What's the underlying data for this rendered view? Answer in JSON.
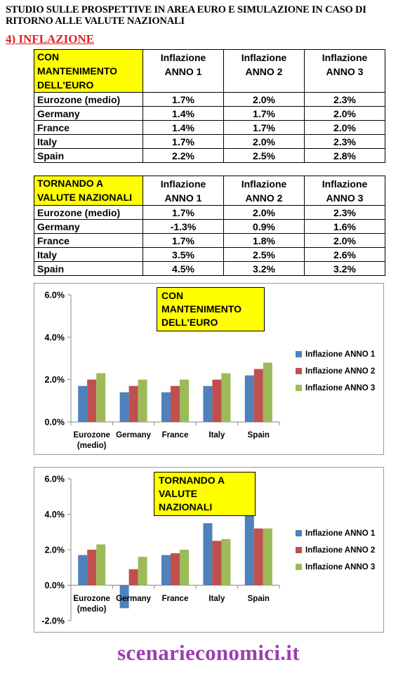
{
  "header": {
    "line1": "STUDIO SULLE PROSPETTIVE IN AREA EURO E SIMULAZIONE IN CASO DI",
    "line2": "RITORNO ALLE VALUTE NAZIONALI",
    "section": "4) INFLAZIONE "
  },
  "table1": {
    "title": "CON MANTENIMENTO DELL'EURO",
    "columns": [
      "Inflazione ANNO 1",
      "Inflazione ANNO 2",
      "Inflazione ANNO 3"
    ],
    "rows": [
      [
        "Eurozone (medio)",
        "1.7%",
        "2.0%",
        "2.3%"
      ],
      [
        "Germany",
        "1.4%",
        "1.7%",
        "2.0%"
      ],
      [
        "France",
        "1.4%",
        "1.7%",
        "2.0%"
      ],
      [
        "Italy",
        "1.7%",
        "2.0%",
        "2.3%"
      ],
      [
        "Spain",
        "2.2%",
        "2.5%",
        "2.8%"
      ]
    ]
  },
  "table2": {
    "title": "TORNANDO A VALUTE NAZIONALI",
    "columns": [
      "Inflazione ANNO 1",
      "Inflazione ANNO 2",
      "Inflazione ANNO 3"
    ],
    "rows": [
      [
        "Eurozone (medio)",
        "1.7%",
        "2.0%",
        "2.3%"
      ],
      [
        "Germany",
        "-1.3%",
        "0.9%",
        "1.6%"
      ],
      [
        "France",
        "1.7%",
        "1.8%",
        "2.0%"
      ],
      [
        "Italy",
        "3.5%",
        "2.5%",
        "2.6%"
      ],
      [
        "Spain",
        "4.5%",
        "3.2%",
        "3.2%"
      ]
    ]
  },
  "colors": {
    "anno1": "#4f81bd",
    "anno2": "#c0504d",
    "anno3": "#9bbb59",
    "highlight": "#ffff00",
    "brand": "#9b3fb0",
    "section": "#e02020"
  },
  "chart_data": [
    {
      "type": "bar",
      "title": "CON MANTENIMENTO DELL'EURO",
      "categories": [
        "Eurozone (medio)",
        "Germany",
        "France",
        "Italy",
        "Spain"
      ],
      "series": [
        {
          "name": "Inflazione ANNO 1",
          "values": [
            1.7,
            1.4,
            1.4,
            1.7,
            2.2
          ]
        },
        {
          "name": "Inflazione ANNO 2",
          "values": [
            2.0,
            1.7,
            1.7,
            2.0,
            2.5
          ]
        },
        {
          "name": "Inflazione ANNO 3",
          "values": [
            2.3,
            2.0,
            2.0,
            2.3,
            2.8
          ]
        }
      ],
      "ylim": [
        0,
        6
      ],
      "yticks": [
        "0.0%",
        "2.0%",
        "4.0%",
        "6.0%"
      ],
      "ytick_values": [
        0,
        2,
        4,
        6
      ],
      "grid": false,
      "legend": "right"
    },
    {
      "type": "bar",
      "title": "TORNANDO A VALUTE NAZIONALI",
      "categories": [
        "Eurozone (medio)",
        "Germany",
        "France",
        "Italy",
        "Spain"
      ],
      "series": [
        {
          "name": "Inflazione ANNO 1",
          "values": [
            1.7,
            -1.3,
            1.7,
            3.5,
            4.5
          ]
        },
        {
          "name": "Inflazione ANNO 2",
          "values": [
            2.0,
            0.9,
            1.8,
            2.5,
            3.2
          ]
        },
        {
          "name": "Inflazione ANNO 3",
          "values": [
            2.3,
            1.6,
            2.0,
            2.6,
            3.2
          ]
        }
      ],
      "ylim": [
        -2,
        6
      ],
      "yticks": [
        "-2.0%",
        "0.0%",
        "2.0%",
        "4.0%",
        "6.0%"
      ],
      "ytick_values": [
        -2,
        0,
        2,
        4,
        6
      ],
      "grid": false,
      "legend": "right"
    }
  ],
  "footer": {
    "brand": "scenarieconomici.it"
  }
}
